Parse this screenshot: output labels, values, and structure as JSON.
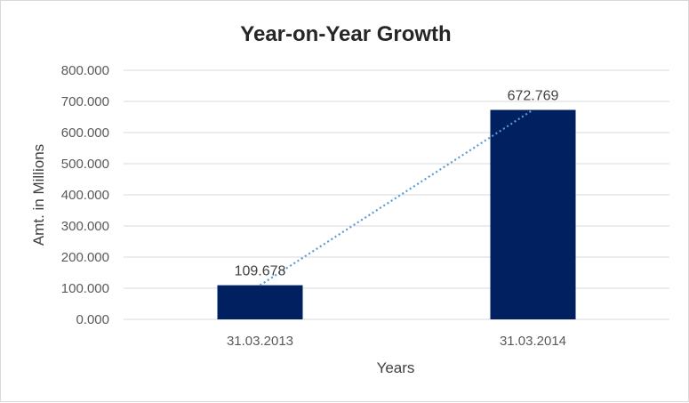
{
  "chart_data": {
    "type": "bar",
    "title": "Year-on-Year Growth",
    "xlabel": "Years",
    "ylabel": "Amt. in Millions",
    "categories": [
      "31.03.2013",
      "31.03.2014"
    ],
    "values": [
      109.678,
      672.769
    ],
    "data_labels": [
      "109.678",
      "672.769"
    ],
    "ylim": [
      0,
      800
    ],
    "yticks": [
      0,
      100,
      200,
      300,
      400,
      500,
      600,
      700,
      800
    ],
    "ytick_labels": [
      "0.000",
      "100.000",
      "200.000",
      "300.000",
      "400.000",
      "500.000",
      "600.000",
      "700.000",
      "800.000"
    ],
    "grid": true,
    "legend": "none",
    "trendline": {
      "type": "linear",
      "style": "dotted"
    },
    "colors": {
      "bar": "#002060",
      "trendline": "#5B9BD5",
      "grid": "#d9d9d9"
    }
  }
}
